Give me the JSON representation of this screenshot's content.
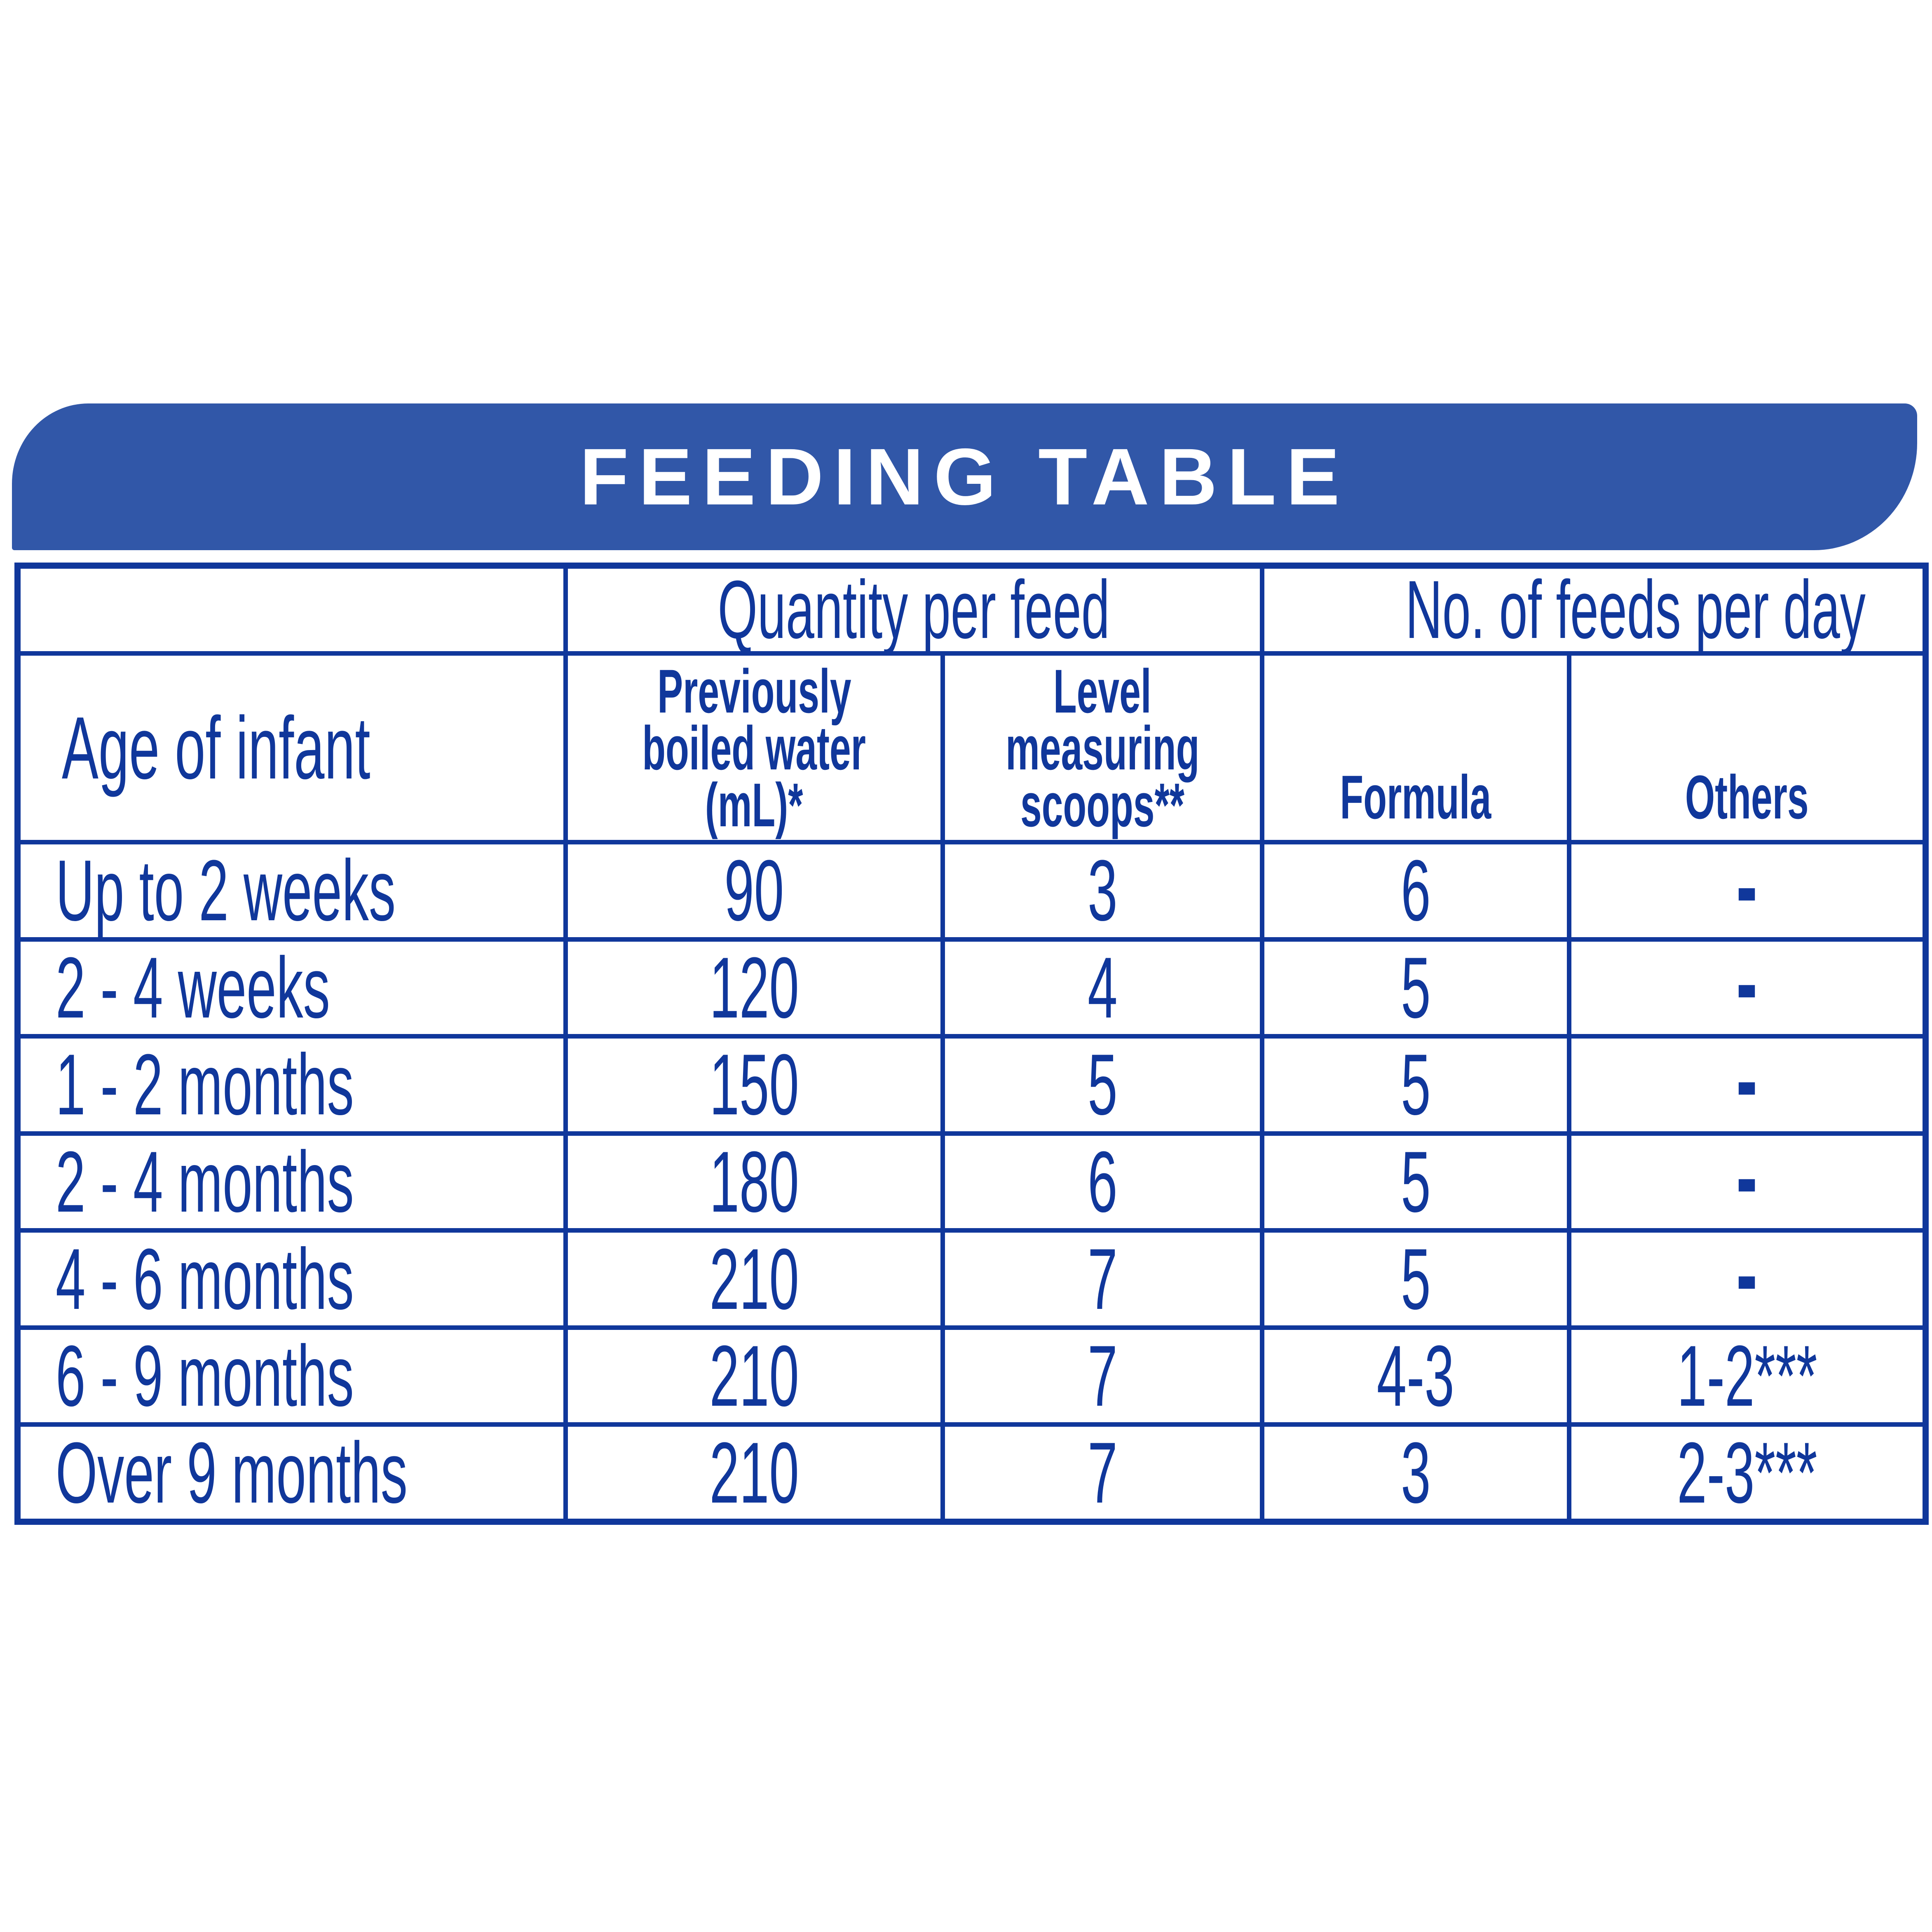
{
  "title": "FEEDING TABLE",
  "table": {
    "group_headers": {
      "quantity_per_feed": "Quantity per feed",
      "feeds_per_day": "No. of feeds per day"
    },
    "column_headers": {
      "age": "Age of infant",
      "water_lines": [
        "Previously",
        "boiled water",
        "(mL)*"
      ],
      "scoops_lines": [
        "Level",
        "measuring",
        "scoops**"
      ],
      "formula": "Formula",
      "others": "Others"
    },
    "rows": [
      {
        "age": "Up to 2 weeks",
        "water": "90",
        "scoops": "3",
        "formula": "6",
        "others": "-"
      },
      {
        "age": "2 - 4 weeks",
        "water": "120",
        "scoops": "4",
        "formula": "5",
        "others": "-"
      },
      {
        "age": "1 - 2 months",
        "water": "150",
        "scoops": "5",
        "formula": "5",
        "others": "-"
      },
      {
        "age": "2 - 4 months",
        "water": "180",
        "scoops": "6",
        "formula": "5",
        "others": "-"
      },
      {
        "age": "4 - 6 months",
        "water": "210",
        "scoops": "7",
        "formula": "5",
        "others": "-"
      },
      {
        "age": "6 - 9 months",
        "water": "210",
        "scoops": "7",
        "formula": "4-3",
        "others": "1-2***"
      },
      {
        "age": "Over 9 months",
        "water": "210",
        "scoops": "7",
        "formula": "3",
        "others": "2-3***"
      }
    ]
  },
  "colors": {
    "background": "#FFFFFF",
    "banner": "#3157A8",
    "ink": "#10379B",
    "title_text": "#FFFFFF"
  }
}
